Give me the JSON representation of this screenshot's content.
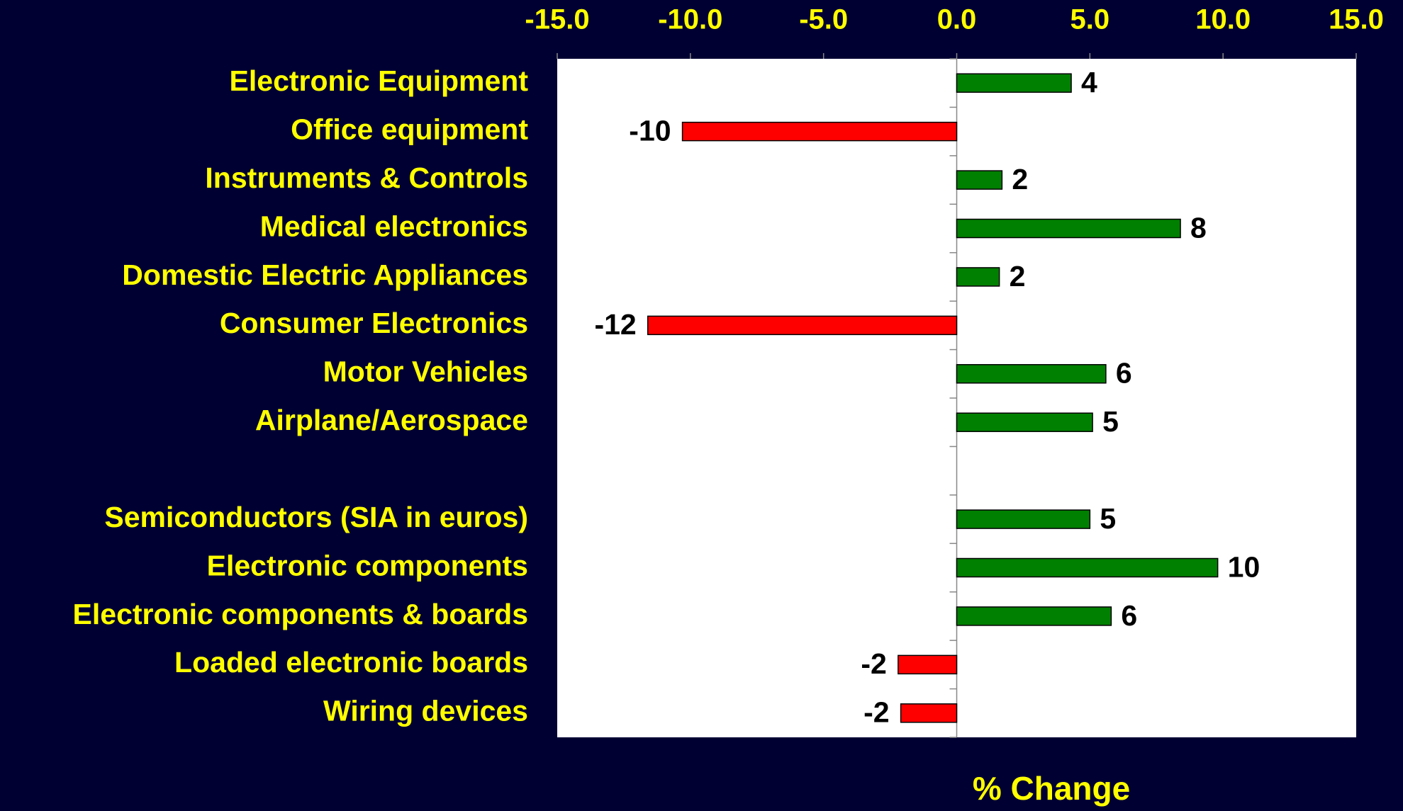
{
  "chart_data": {
    "type": "barh",
    "xlabel": "% Change",
    "categories": [
      "Electronic Equipment",
      "Office equipment",
      "Instruments & Controls",
      "Medical electronics",
      "Domestic Electric Appliances",
      "Consumer Electronics",
      "Motor Vehicles",
      "Airplane/Aerospace",
      null,
      "Semiconductors (SIA in euros)",
      "Electronic components",
      "Electronic components & boards",
      "Loaded electronic boards",
      "Wiring devices"
    ],
    "values": [
      4.3,
      -10.3,
      1.7,
      8.4,
      1.6,
      -11.6,
      5.6,
      5.1,
      null,
      5.0,
      9.8,
      5.8,
      -2.2,
      -2.1
    ],
    "value_labels": [
      "4",
      "-10",
      "2",
      "8",
      "2",
      "-12",
      "6",
      "5",
      null,
      "5",
      "10",
      "6",
      "-2",
      "-2"
    ],
    "positive_color": "#008000",
    "negative_color": "#ff0000",
    "xlim": [
      -15,
      15
    ],
    "xticks": [
      {
        "value": -15,
        "label": "-15.0"
      },
      {
        "value": -10,
        "label": "-10.0"
      },
      {
        "value": -5,
        "label": "-5.0"
      },
      {
        "value": 0,
        "label": "0.0"
      },
      {
        "value": 5,
        "label": "5.0"
      },
      {
        "value": 10,
        "label": "10.0"
      },
      {
        "value": 15,
        "label": "15.0"
      }
    ]
  }
}
